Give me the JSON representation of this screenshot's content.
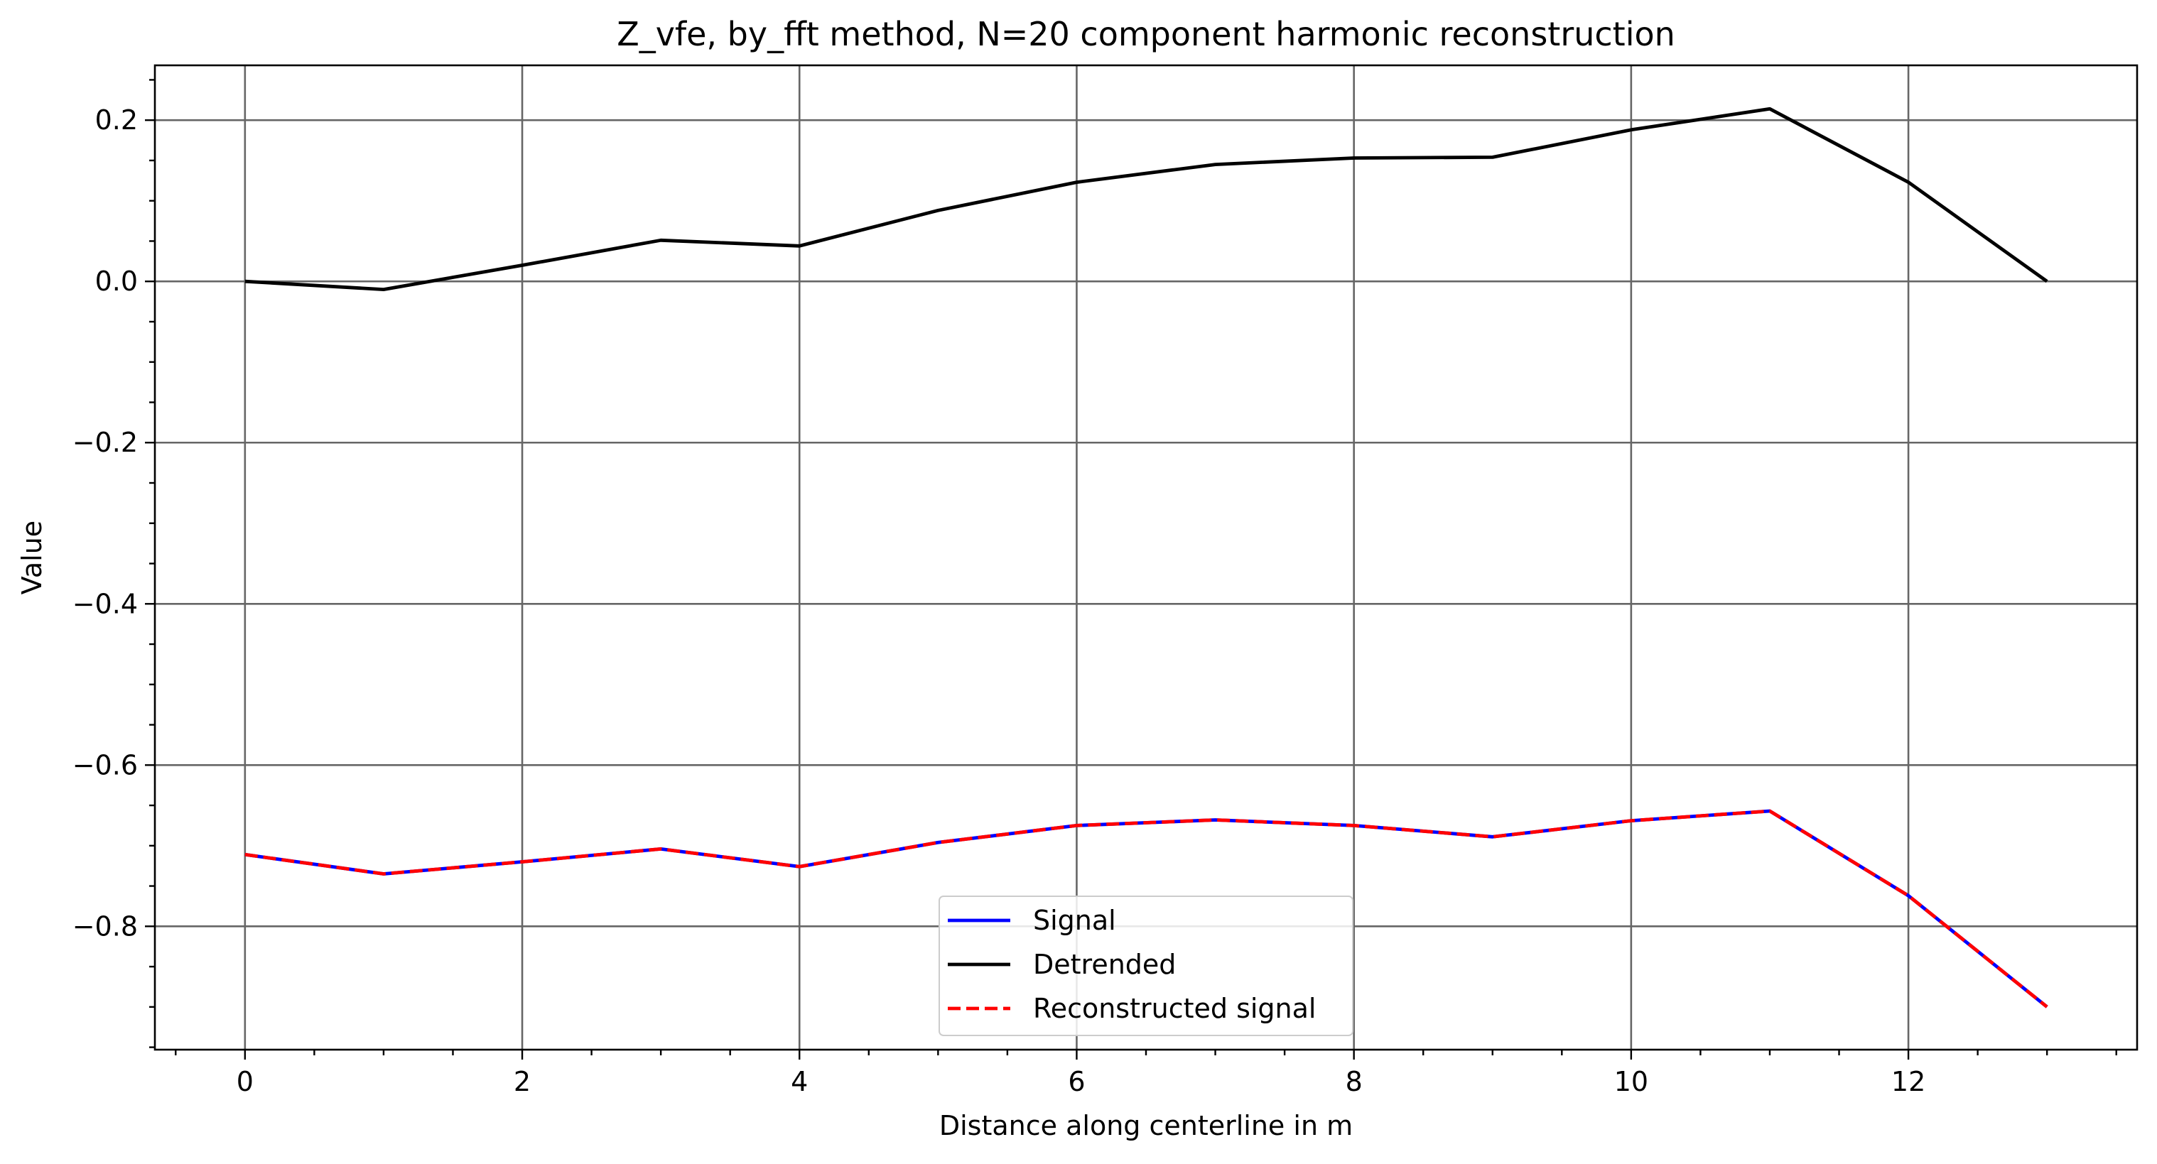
{
  "chart_data": {
    "type": "line",
    "title": "Z_vfe, by_fft method, N=20 component harmonic reconstruction",
    "xlabel": "Distance along centerline in m",
    "ylabel": "Value",
    "xlim": [
      -0.65,
      13.65
    ],
    "ylim": [
      -0.953,
      0.268
    ],
    "x_ticks": [
      0,
      2,
      4,
      6,
      8,
      10,
      12
    ],
    "x_tick_labels": [
      "0",
      "2",
      "4",
      "6",
      "8",
      "10",
      "12"
    ],
    "x_minor_step": 0.5,
    "y_ticks": [
      0.2,
      0.0,
      -0.2,
      -0.4,
      -0.6,
      -0.8
    ],
    "y_tick_labels": [
      "0.2",
      "0.0",
      "−0.2",
      "−0.4",
      "−0.6",
      "−0.8"
    ],
    "y_minor_step": 0.05,
    "grid": true,
    "legend_position": "lower-center",
    "x": [
      0,
      1,
      2,
      3,
      4,
      5,
      6,
      7,
      8,
      9,
      10,
      11,
      12,
      13
    ],
    "series": [
      {
        "name": "Signal",
        "color": "#0000ff",
        "style": "solid",
        "values": [
          -0.711,
          -0.735,
          -0.72,
          -0.704,
          -0.726,
          -0.696,
          -0.675,
          -0.668,
          -0.675,
          -0.689,
          -0.669,
          -0.657,
          -0.762,
          -0.9
        ]
      },
      {
        "name": "Detrended",
        "color": "#000000",
        "style": "solid",
        "values": [
          0.0,
          -0.01,
          0.02,
          0.051,
          0.044,
          0.088,
          0.123,
          0.145,
          0.153,
          0.154,
          0.188,
          0.214,
          0.123,
          0.0
        ]
      },
      {
        "name": "Reconstructed signal",
        "color": "#ff0000",
        "style": "dashed",
        "values": [
          -0.711,
          -0.735,
          -0.72,
          -0.704,
          -0.726,
          -0.696,
          -0.675,
          -0.668,
          -0.675,
          -0.689,
          -0.669,
          -0.657,
          -0.762,
          -0.9
        ]
      }
    ]
  }
}
